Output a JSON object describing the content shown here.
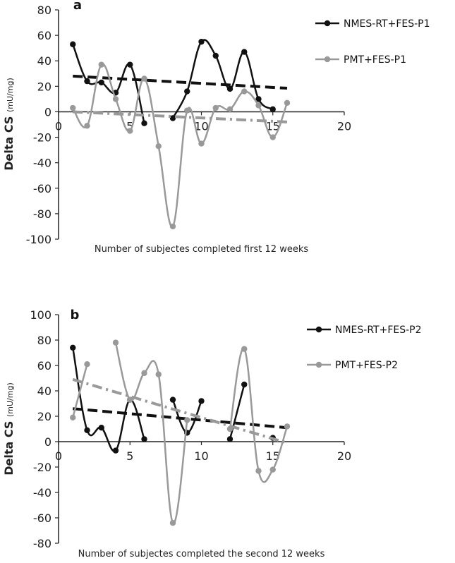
{
  "chart_data": [
    {
      "type": "line",
      "panel_label": "a",
      "xlabel": "Number of subjectes completed first 12 weeks",
      "ylabel": "Delta CS",
      "ylabel_unit": "(mU/mg)",
      "xlim": [
        0,
        20
      ],
      "ylim": [
        -100,
        80
      ],
      "xticks": [
        0,
        5,
        10,
        15,
        20
      ],
      "yticks": [
        -100,
        -80,
        -60,
        -40,
        -20,
        0,
        20,
        40,
        60,
        80
      ],
      "grid": false,
      "legend_position": "right",
      "series": [
        {
          "name": "NMES-RT+FES-P1",
          "color": "#111111",
          "style": "smooth-line-markers",
          "segments": [
            [
              [
                1,
                53
              ],
              [
                2,
                24
              ],
              [
                3,
                23
              ],
              [
                4,
                15
              ],
              [
                5,
                37
              ],
              [
                6,
                -9
              ]
            ],
            [
              [
                8,
                -5
              ],
              [
                9,
                16
              ],
              [
                10,
                55
              ],
              [
                11,
                44
              ],
              [
                12,
                18
              ],
              [
                13,
                47
              ],
              [
                14,
                10
              ],
              [
                15,
                2
              ]
            ]
          ],
          "trendline": [
            [
              1,
              28
            ],
            [
              16,
              18.5
            ]
          ]
        },
        {
          "name": "PMT+FES-P1",
          "color": "#999999",
          "style": "smooth-line-markers",
          "segments": [
            [
              [
                1,
                3
              ],
              [
                2,
                -11
              ],
              [
                3,
                37
              ],
              [
                4,
                10
              ],
              [
                5,
                -15
              ],
              [
                6,
                26
              ],
              [
                7,
                -27
              ],
              [
                8,
                -90
              ],
              [
                9,
                1
              ],
              [
                10,
                -25
              ],
              [
                11,
                3
              ],
              [
                12,
                2
              ],
              [
                13,
                16
              ],
              [
                14,
                5
              ],
              [
                15,
                -20
              ],
              [
                16,
                7
              ]
            ]
          ],
          "trendline": [
            [
              1,
              0
            ],
            [
              16,
              -8
            ]
          ]
        }
      ]
    },
    {
      "type": "line",
      "panel_label": "b",
      "xlabel": "Number of subjectes completed the second 12 weeks",
      "ylabel": "Delta CS",
      "ylabel_unit": "(mU/mg)",
      "xlim": [
        0,
        20
      ],
      "ylim": [
        -80,
        100
      ],
      "xticks": [
        0,
        5,
        10,
        15,
        20
      ],
      "yticks": [
        -80,
        -60,
        -40,
        -20,
        0,
        20,
        40,
        60,
        80,
        100
      ],
      "grid": false,
      "legend_position": "right",
      "series": [
        {
          "name": "NMES-RT+FES-P2",
          "color": "#111111",
          "style": "smooth-line-markers",
          "segments": [
            [
              [
                1,
                74
              ],
              [
                2,
                9
              ],
              [
                3,
                11
              ],
              [
                4,
                -7
              ],
              [
                5,
                33
              ],
              [
                6,
                2
              ]
            ],
            [
              [
                8,
                33
              ],
              [
                9,
                7
              ],
              [
                10,
                32
              ]
            ],
            [
              [
                12,
                2
              ],
              [
                13,
                45
              ]
            ],
            [
              [
                15,
                3
              ]
            ]
          ],
          "trendline": [
            [
              1,
              26
            ],
            [
              16,
              11
            ]
          ]
        },
        {
          "name": "PMT+FES-P2",
          "color": "#999999",
          "style": "smooth-line-markers",
          "segments": [
            [
              [
                1,
                19
              ],
              [
                2,
                61
              ]
            ],
            [
              [
                4,
                78
              ],
              [
                5,
                33
              ],
              [
                6,
                54
              ],
              [
                7,
                53
              ],
              [
                8,
                -64
              ],
              [
                9,
                17
              ]
            ],
            [
              [
                12,
                10
              ],
              [
                13,
                73
              ],
              [
                14,
                -23
              ],
              [
                15,
                -22
              ],
              [
                16,
                12
              ]
            ]
          ],
          "trendline": [
            [
              1,
              49
            ],
            [
              16,
              -1
            ]
          ]
        }
      ]
    }
  ]
}
